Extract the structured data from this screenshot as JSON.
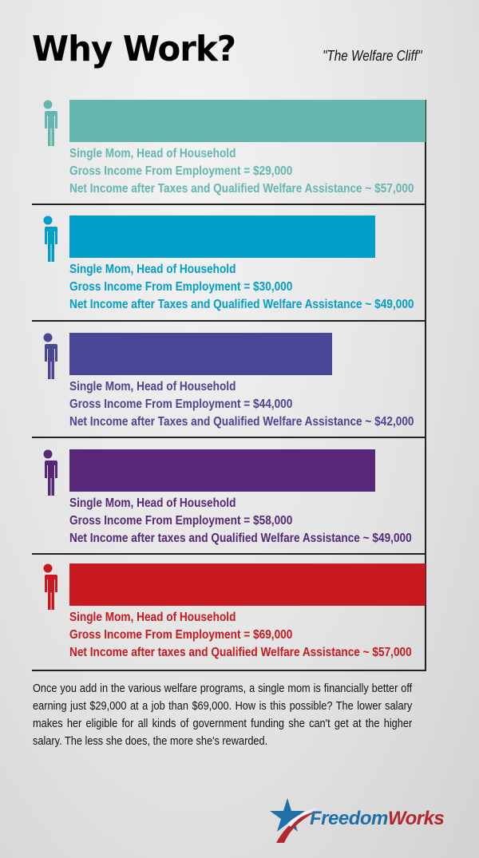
{
  "chart_data": {
    "type": "bar",
    "orientation": "horizontal",
    "title": "Why Work?",
    "subtitle": "\"The Welfare Cliff\"",
    "xlim": [
      0,
      57000
    ],
    "grid": false,
    "bars": [
      {
        "color": "#63b7ae",
        "value": 57000,
        "lines": [
          "Single Mom, Head of Household",
          "Gross Income From Employment = $29,000",
          "Net Income after Taxes and Qualified Welfare Assistance ~ $57,000"
        ]
      },
      {
        "color": "#009ec9",
        "value": 49000,
        "lines": [
          "Single Mom, Head of Household",
          "Gross Income From Employment = $30,000",
          "Net Income after Taxes and Qualified Welfare Assistance ~ $49,000"
        ]
      },
      {
        "color": "#4a4594",
        "value": 42000,
        "lines": [
          "Single Mom, Head of Household",
          "Gross Income From Employment = $44,000",
          "Net Income after Taxes and Qualified Welfare Assistance ~ $42,000"
        ]
      },
      {
        "color": "#57287a",
        "value": 49000,
        "lines": [
          "Single Mom, Head of Household",
          "Gross Income From Employment = $58,000",
          "Net Income after taxes and Qualified Welfare Assistance ~ $49,000"
        ]
      },
      {
        "color": "#c8191f",
        "value": 57000,
        "lines": [
          "Single Mom, Head of Household",
          "Gross Income From Employment = $69,000",
          "Net Income after taxes and Qualified Welfare Assistance ~ $57,000"
        ]
      }
    ]
  },
  "body_text": "Once you add in the various welfare programs, a single mom is financially better off earning just $29,000 at a job than $69,000. How is this possible? The lower salary makes her eligible for all kinds of government funding she can't get at the higher salary. The less she does, the more she's rewarded.",
  "logo": {
    "part1": "Freedom",
    "part2": "Works",
    "color1": "#1f6fa8",
    "color2": "#b3262d"
  }
}
